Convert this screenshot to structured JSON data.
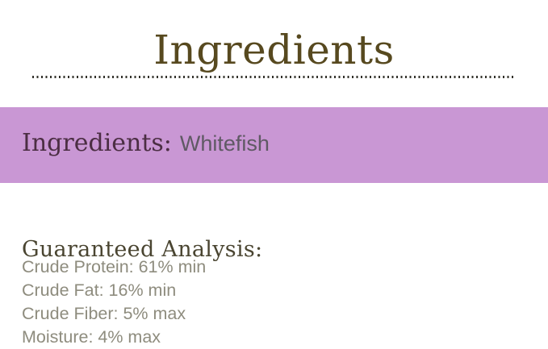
{
  "page": {
    "title": "Ingredients"
  },
  "banner": {
    "label": "Ingredients:",
    "value": "Whitefish"
  },
  "analysis": {
    "heading": "Guaranteed Analysis:",
    "items": [
      {
        "label": "Crude Protein",
        "value": "61% min",
        "text": "Crude Protein: 61% min"
      },
      {
        "label": "Crude Fat",
        "value": "16% min",
        "text": "Crude Fat: 16% min"
      },
      {
        "label": "Crude Fiber",
        "value": "5% max",
        "text": "Crude Fiber: 5% max"
      },
      {
        "label": "Moisture",
        "value": "4% max",
        "text": "Moisture: 4% max"
      }
    ]
  },
  "colors": {
    "banner_background": "#c997d4",
    "title_text": "#57491f",
    "banner_label_text": "#4b2e43",
    "banner_value_text": "#5f5964",
    "analysis_heading_text": "#4a4531",
    "analysis_body_text": "#8e8c7e",
    "dotted_line": "#32312a",
    "page_background": "#ffffff"
  }
}
